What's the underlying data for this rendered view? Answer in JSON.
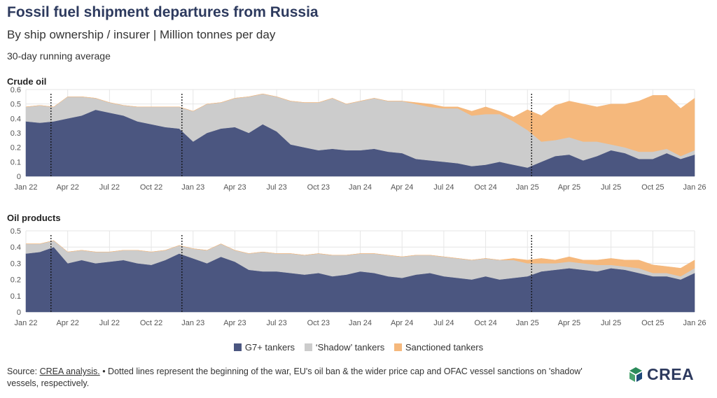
{
  "header": {
    "title": "Fossil fuel shipment departures from Russia",
    "subtitle": "By ship ownership / insurer | Million tonnes per day",
    "note": "30-day running average"
  },
  "legend": {
    "items": [
      {
        "label": "G7+ tankers",
        "color": "#4b5680"
      },
      {
        "label": "‘Shadow’ tankers",
        "color": "#cccccc"
      },
      {
        "label": "Sanctioned tankers",
        "color": "#f5b87c"
      }
    ]
  },
  "footer": {
    "source_label": "Source: ",
    "source_link": "CREA analysis.",
    "text": " • Dotted lines represent the beginning of the war, EU's oil ban & the wider price cap and OFAC vessel sanctions on 'shadow' vessels, respectively."
  },
  "logo": {
    "text": "CREA"
  },
  "chart_data": [
    {
      "type": "area",
      "stacked": true,
      "title": "Crude oil",
      "x_tick_labels": [
        "Jan 22",
        "Apr 22",
        "Jul 22",
        "Oct 22",
        "Jan 23",
        "Apr 23",
        "Jul 23",
        "Oct 23",
        "Jan 24",
        "Apr 24",
        "Jul 24",
        "Oct 24",
        "Jan 25",
        "Apr 25",
        "Jul 25",
        "Oct 25",
        "Jan 26"
      ],
      "x_tick_month_index": [
        0,
        3,
        6,
        9,
        12,
        15,
        18,
        21,
        24,
        27,
        30,
        33,
        36,
        39,
        42,
        45,
        48
      ],
      "ylim": [
        0,
        0.6
      ],
      "y_ticks": [
        0,
        0.1,
        0.2,
        0.3,
        0.4,
        0.5,
        0.6
      ],
      "y_tick_labels": [
        "0",
        "0.1",
        "0.2",
        "0.3",
        "0.4",
        "0.5",
        "0.6"
      ],
      "event_lines_month_index": [
        1.8,
        11.2,
        36.3
      ],
      "x_month_index": [
        0,
        1,
        2,
        3,
        4,
        5,
        6,
        7,
        8,
        9,
        10,
        11,
        12,
        13,
        14,
        15,
        16,
        17,
        18,
        19,
        20,
        21,
        22,
        23,
        24,
        25,
        26,
        27,
        28,
        29,
        30,
        31,
        32,
        33,
        34,
        35,
        36,
        37,
        38,
        39,
        40,
        41,
        42,
        43,
        44,
        45,
        46,
        47,
        48
      ],
      "series": [
        {
          "name": "G7+ tankers",
          "color": "#4b5680",
          "values": [
            0.38,
            0.37,
            0.38,
            0.4,
            0.42,
            0.46,
            0.44,
            0.42,
            0.38,
            0.36,
            0.34,
            0.33,
            0.24,
            0.3,
            0.33,
            0.34,
            0.3,
            0.36,
            0.31,
            0.22,
            0.2,
            0.18,
            0.19,
            0.18,
            0.18,
            0.19,
            0.17,
            0.16,
            0.12,
            0.11,
            0.1,
            0.09,
            0.07,
            0.08,
            0.1,
            0.08,
            0.06,
            0.1,
            0.14,
            0.15,
            0.11,
            0.14,
            0.18,
            0.16,
            0.12,
            0.12,
            0.16,
            0.12,
            0.15
          ]
        },
        {
          "name": "‘Shadow’ tankers",
          "color": "#cccccc",
          "values": [
            0.1,
            0.12,
            0.1,
            0.15,
            0.13,
            0.08,
            0.07,
            0.07,
            0.1,
            0.12,
            0.14,
            0.15,
            0.21,
            0.2,
            0.18,
            0.2,
            0.25,
            0.21,
            0.24,
            0.3,
            0.31,
            0.33,
            0.35,
            0.32,
            0.34,
            0.35,
            0.35,
            0.36,
            0.38,
            0.37,
            0.37,
            0.38,
            0.35,
            0.35,
            0.33,
            0.3,
            0.26,
            0.14,
            0.11,
            0.12,
            0.13,
            0.1,
            0.04,
            0.04,
            0.05,
            0.05,
            0.03,
            0.02,
            0.03
          ]
        },
        {
          "name": "Sanctioned tankers",
          "color": "#f5b87c",
          "values": [
            0,
            0,
            0,
            0,
            0,
            0,
            0,
            0,
            0,
            0,
            0,
            0,
            0,
            0,
            0,
            0,
            0,
            0,
            0,
            0,
            0,
            0,
            0,
            0,
            0,
            0,
            0,
            0,
            0.01,
            0.02,
            0.01,
            0.01,
            0.03,
            0.05,
            0.02,
            0.03,
            0.14,
            0.18,
            0.24,
            0.25,
            0.26,
            0.24,
            0.28,
            0.3,
            0.35,
            0.39,
            0.37,
            0.33,
            0.36
          ]
        }
      ]
    },
    {
      "type": "area",
      "stacked": true,
      "title": "Oil products",
      "x_tick_labels": [
        "Jan 22",
        "Apr 22",
        "Jul 22",
        "Oct 22",
        "Jan 23",
        "Apr 23",
        "Jul 23",
        "Oct 23",
        "Jan 24",
        "Apr 24",
        "Jul 24",
        "Oct 24",
        "Jan 25",
        "Apr 25",
        "Jul 25",
        "Oct 25",
        "Jan 26"
      ],
      "x_tick_month_index": [
        0,
        3,
        6,
        9,
        12,
        15,
        18,
        21,
        24,
        27,
        30,
        33,
        36,
        39,
        42,
        45,
        48
      ],
      "ylim": [
        0,
        0.5
      ],
      "y_ticks": [
        0,
        0.1,
        0.2,
        0.3,
        0.4,
        0.5
      ],
      "y_tick_labels": [
        "0",
        "0.1",
        "0.2",
        "0.3",
        "0.4",
        "0.5"
      ],
      "event_lines_month_index": [
        1.8,
        11.2,
        36.3
      ],
      "x_month_index": [
        0,
        1,
        2,
        3,
        4,
        5,
        6,
        7,
        8,
        9,
        10,
        11,
        12,
        13,
        14,
        15,
        16,
        17,
        18,
        19,
        20,
        21,
        22,
        23,
        24,
        25,
        26,
        27,
        28,
        29,
        30,
        31,
        32,
        33,
        34,
        35,
        36,
        37,
        38,
        39,
        40,
        41,
        42,
        43,
        44,
        45,
        46,
        47,
        48
      ],
      "series": [
        {
          "name": "G7+ tankers",
          "color": "#4b5680",
          "values": [
            0.36,
            0.37,
            0.4,
            0.3,
            0.32,
            0.3,
            0.31,
            0.32,
            0.3,
            0.29,
            0.32,
            0.36,
            0.33,
            0.3,
            0.34,
            0.31,
            0.26,
            0.25,
            0.25,
            0.24,
            0.23,
            0.24,
            0.22,
            0.23,
            0.25,
            0.24,
            0.22,
            0.21,
            0.23,
            0.24,
            0.22,
            0.21,
            0.2,
            0.22,
            0.2,
            0.21,
            0.22,
            0.25,
            0.26,
            0.27,
            0.26,
            0.25,
            0.27,
            0.26,
            0.24,
            0.22,
            0.22,
            0.2,
            0.24
          ]
        },
        {
          "name": "‘Shadow’ tankers",
          "color": "#cccccc",
          "values": [
            0.06,
            0.05,
            0.04,
            0.07,
            0.06,
            0.07,
            0.06,
            0.06,
            0.08,
            0.08,
            0.06,
            0.05,
            0.06,
            0.08,
            0.08,
            0.07,
            0.1,
            0.12,
            0.11,
            0.12,
            0.12,
            0.12,
            0.13,
            0.12,
            0.11,
            0.12,
            0.13,
            0.13,
            0.12,
            0.11,
            0.12,
            0.12,
            0.12,
            0.11,
            0.12,
            0.11,
            0.08,
            0.05,
            0.04,
            0.04,
            0.04,
            0.04,
            0.02,
            0.02,
            0.03,
            0.02,
            0.02,
            0.02,
            0.03
          ]
        },
        {
          "name": "Sanctioned tankers",
          "color": "#f5b87c",
          "values": [
            0,
            0,
            0,
            0,
            0,
            0,
            0,
            0,
            0,
            0,
            0,
            0,
            0,
            0,
            0,
            0,
            0,
            0,
            0,
            0,
            0,
            0,
            0,
            0,
            0,
            0,
            0,
            0,
            0,
            0,
            0,
            0,
            0,
            0,
            0,
            0.01,
            0.02,
            0.03,
            0.02,
            0.03,
            0.02,
            0.03,
            0.04,
            0.04,
            0.05,
            0.05,
            0.04,
            0.05,
            0.05
          ]
        }
      ]
    }
  ]
}
